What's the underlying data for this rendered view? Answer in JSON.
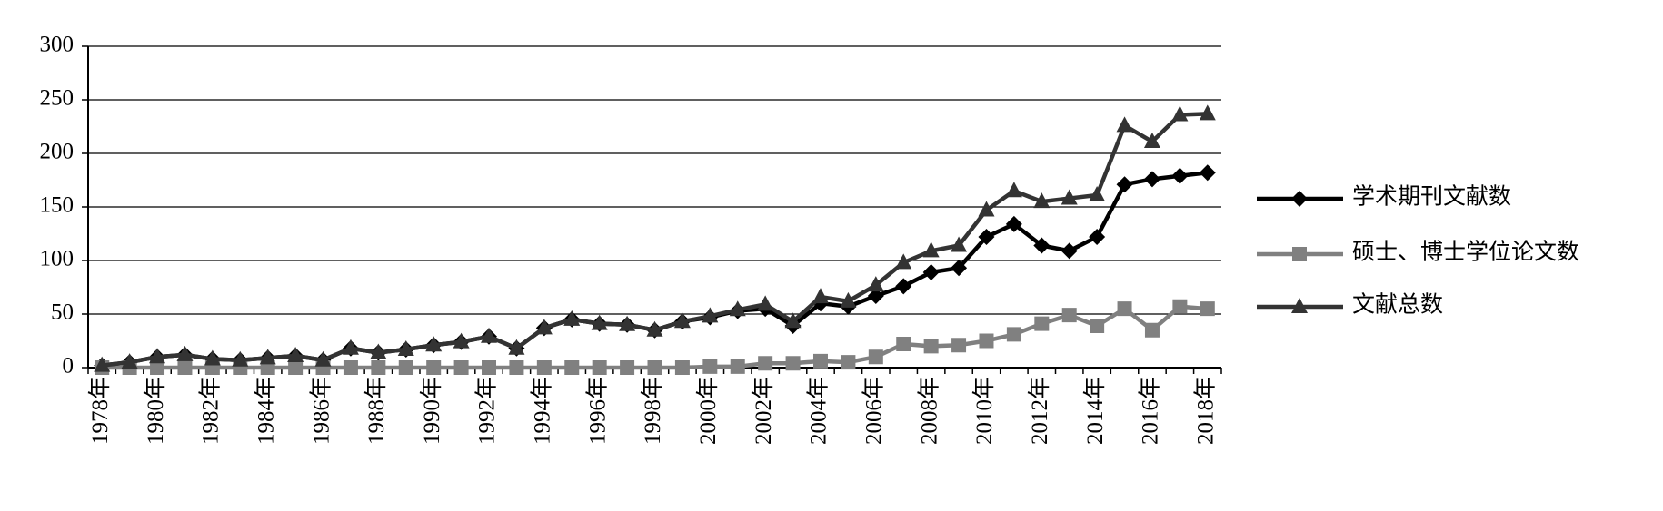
{
  "chart_data": {
    "type": "line",
    "categories": [
      "1978年",
      null,
      "1980年",
      null,
      "1982年",
      null,
      "1984年",
      null,
      "1986年",
      null,
      "1988年",
      null,
      "1990年",
      null,
      "1992年",
      null,
      "1994年",
      null,
      "1996年",
      null,
      "1998年",
      null,
      "2000年",
      null,
      "2002年",
      null,
      "2004年",
      null,
      "2006年",
      null,
      "2008年",
      null,
      "2010年",
      null,
      "2012年",
      null,
      "2014年",
      null,
      "2016年",
      null,
      "2018年"
    ],
    "series": [
      {
        "name": "学术期刊文献数",
        "color": "#000000",
        "marker": "diamond",
        "values": [
          2,
          5,
          10,
          12,
          8,
          7,
          9,
          11,
          7,
          18,
          14,
          17,
          21,
          24,
          29,
          18,
          37,
          45,
          41,
          40,
          35,
          43,
          47,
          53,
          55,
          39,
          60,
          57,
          67,
          76,
          89,
          93,
          122,
          134,
          114,
          109,
          122,
          171,
          176,
          179,
          182
        ]
      },
      {
        "name": "硕士、博士学位论文数",
        "color": "#808080",
        "marker": "square",
        "values": [
          0,
          0,
          0,
          0,
          0,
          0,
          0,
          0,
          0,
          0,
          0,
          0,
          0,
          0,
          0,
          0,
          0,
          0,
          0,
          0,
          0,
          0,
          1,
          1,
          4,
          4,
          6,
          5,
          10,
          22,
          20,
          21,
          25,
          31,
          41,
          49,
          39,
          55,
          35,
          57,
          55
        ]
      },
      {
        "name": "文献总数",
        "color": "#333333",
        "marker": "triangle",
        "values": [
          2,
          5,
          10,
          12,
          8,
          7,
          9,
          11,
          7,
          18,
          14,
          17,
          21,
          24,
          29,
          18,
          37,
          45,
          41,
          40,
          35,
          43,
          48,
          54,
          59,
          43,
          66,
          62,
          77,
          98,
          109,
          114,
          147,
          165,
          155,
          158,
          161,
          226,
          211,
          236,
          237
        ]
      }
    ],
    "ylim": [
      0,
      300
    ],
    "yticks": [
      0,
      50,
      100,
      150,
      200,
      250,
      300
    ],
    "grid": true
  }
}
